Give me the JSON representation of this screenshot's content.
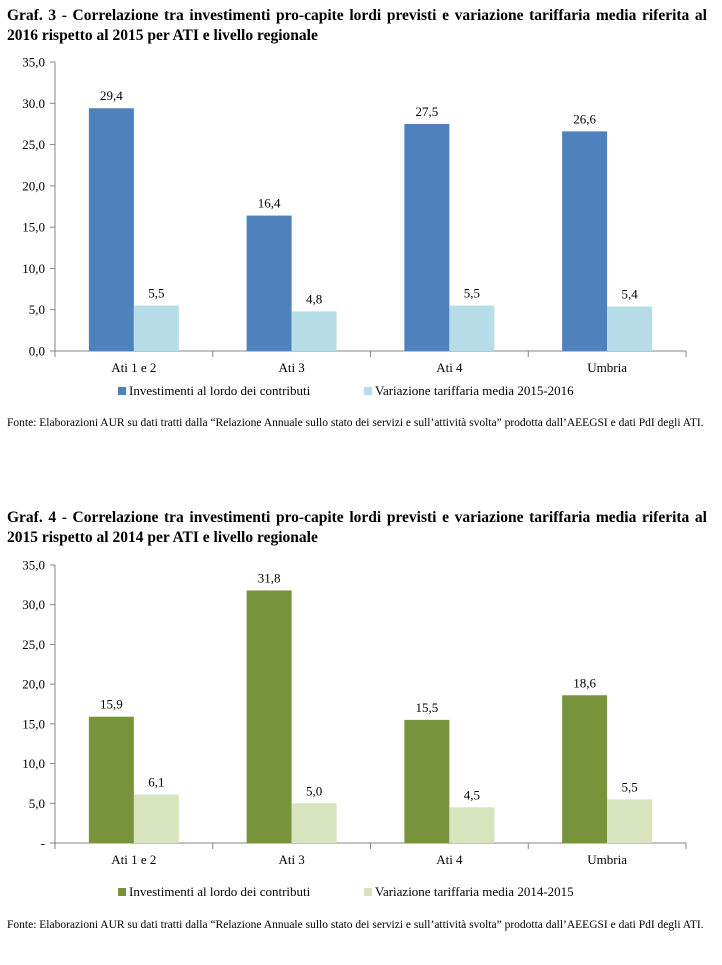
{
  "charts": [
    {
      "title": "Graf.  3 - Correlazione tra investimenti pro-capite lordi previsti e variazione tariffaria media riferita al 2016 rispetto al 2015 per ATI e livello regionale",
      "source": "Fonte: Elaborazioni AUR su dati tratti dalla “Relazione Annuale sullo stato dei servizi e sull’attività svolta” prodotta dall’AEEGSI e dati PdI degli ATI.",
      "colors": {
        "series1": "#4f81bd",
        "series2": "#b7dee8"
      }
    },
    {
      "title": "Graf.  4 - Correlazione tra investimenti pro-capite lordi previsti e variazione tariffaria media riferita al 2015 rispetto al 2014 per ATI e livello regionale",
      "source": "Fonte: Elaborazioni AUR su dati tratti dalla “Relazione Annuale sullo stato dei servizi e sull’attività svolta” prodotta dall’AEEGSI e dati PdI degli ATI.",
      "colors": {
        "series1": "#77933c",
        "series2": "#d7e4bd"
      }
    }
  ],
  "chart_data": [
    {
      "type": "bar",
      "categories": [
        "Ati 1 e 2",
        "Ati 3",
        "Ati 4",
        "Umbria"
      ],
      "series": [
        {
          "name": "Investimenti al lordo dei contributi",
          "values": [
            29.4,
            16.4,
            27.5,
            26.6
          ],
          "labels": [
            "29,4",
            "16,4",
            "27,5",
            "26,6"
          ]
        },
        {
          "name": "Variazione tariffaria media 2015-2016",
          "values": [
            5.5,
            4.8,
            5.5,
            5.4
          ],
          "labels": [
            "5,5",
            "4,8",
            "5,5",
            "5,4"
          ]
        }
      ],
      "ylim": [
        0,
        35
      ],
      "yticks": [
        0,
        5,
        10,
        15,
        20,
        25,
        30,
        35
      ],
      "ytick_labels": [
        "0,0",
        "5,0",
        "10,0",
        "15,0",
        "20,0",
        "25,0",
        "30.0",
        "35,0"
      ],
      "legend": "bottom",
      "grid": false
    },
    {
      "type": "bar",
      "categories": [
        "Ati 1 e 2",
        "Ati 3",
        "Ati 4",
        "Umbria"
      ],
      "series": [
        {
          "name": "Investimenti al lordo dei contributi",
          "values": [
            15.9,
            31.8,
            15.5,
            18.6
          ],
          "labels": [
            "15,9",
            "31,8",
            "15,5",
            "18,6"
          ]
        },
        {
          "name": "Variazione tariffaria media 2014-2015",
          "values": [
            6.1,
            5.0,
            4.5,
            5.5
          ],
          "labels": [
            "6,1",
            "5,0",
            "4,5",
            "5,5"
          ]
        }
      ],
      "ylim": [
        0,
        35
      ],
      "yticks": [
        0,
        5,
        10,
        15,
        20,
        25,
        30,
        35
      ],
      "ytick_labels": [
        "-",
        "5,0",
        "10,0",
        "15,0",
        "20,0",
        "25,0",
        "30,0",
        "35,0"
      ],
      "legend": "bottom",
      "grid": false
    }
  ]
}
